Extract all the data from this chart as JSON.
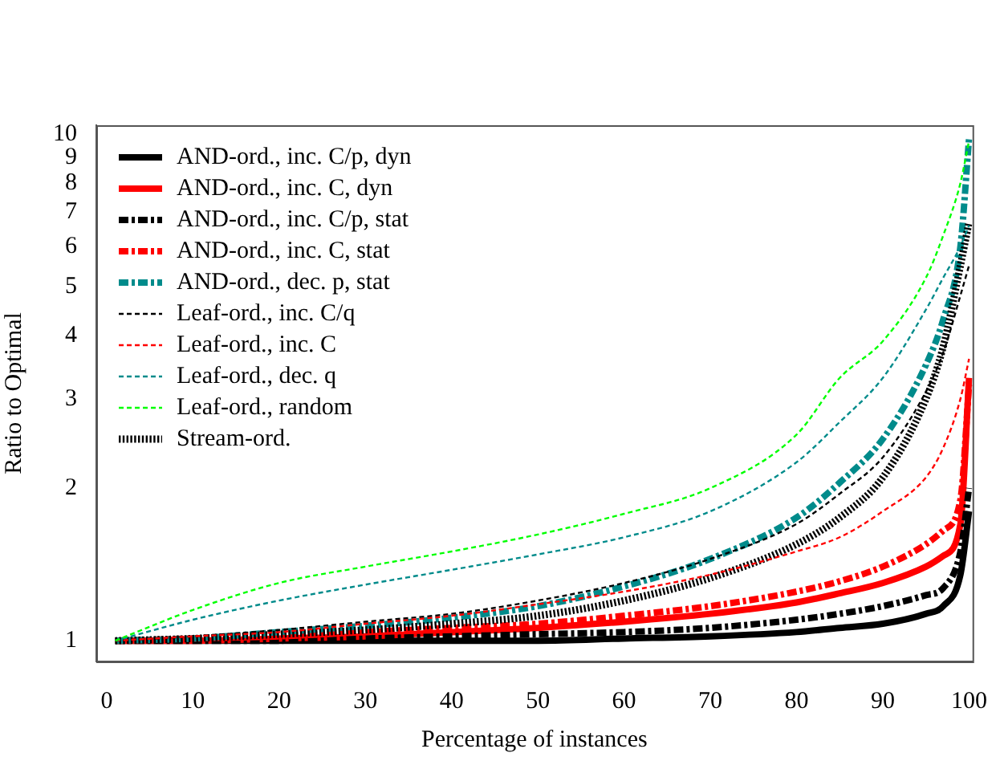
{
  "chart_data": {
    "type": "line",
    "xlabel": "Percentage of instances",
    "ylabel": "Ratio to Optimal",
    "x": [
      1,
      10,
      20,
      30,
      40,
      50,
      60,
      70,
      80,
      85,
      90,
      95,
      97,
      99,
      100
    ],
    "series": [
      {
        "name": "AND-ord., inc. C/p, dyn",
        "color": "#000000",
        "line_style": "solid",
        "values": [
          1,
          1,
          1,
          1,
          1,
          1.0,
          1.01,
          1.02,
          1.04,
          1.06,
          1.08,
          1.13,
          1.17,
          1.35,
          1.8
        ]
      },
      {
        "name": "AND-ord., inc. C, dyn",
        "color": "#ff0000",
        "line_style": "solid",
        "values": [
          1,
          1.0,
          1.01,
          1.02,
          1.04,
          1.06,
          1.09,
          1.13,
          1.19,
          1.24,
          1.3,
          1.4,
          1.47,
          1.7,
          3.3
        ]
      },
      {
        "name": "AND-ord., inc. C/p, stat",
        "color": "#000000",
        "line_style": "dashdot",
        "values": [
          1,
          1,
          1,
          1.01,
          1.02,
          1.03,
          1.04,
          1.06,
          1.1,
          1.13,
          1.17,
          1.23,
          1.27,
          1.5,
          2.0
        ]
      },
      {
        "name": "AND-ord., inc. C, stat",
        "color": "#ff0000",
        "line_style": "dashdot",
        "values": [
          1,
          1.01,
          1.02,
          1.04,
          1.06,
          1.08,
          1.12,
          1.17,
          1.25,
          1.31,
          1.4,
          1.55,
          1.65,
          1.9,
          3.2
        ]
      },
      {
        "name": "AND-ord., dec. p, stat",
        "color": "#008b8b",
        "line_style": "dashdot",
        "values": [
          1,
          1.01,
          1.04,
          1.07,
          1.11,
          1.17,
          1.28,
          1.45,
          1.75,
          2.05,
          2.5,
          3.5,
          4.3,
          6.0,
          9.8
        ]
      },
      {
        "name": "Leaf-ord., inc. C/q",
        "color": "#000000",
        "line_style": "dashed",
        "values": [
          1,
          1.02,
          1.05,
          1.09,
          1.13,
          1.2,
          1.3,
          1.45,
          1.7,
          1.95,
          2.3,
          3.1,
          3.7,
          4.8,
          5.5
        ]
      },
      {
        "name": "Leaf-ord., inc. C",
        "color": "#ff0000",
        "line_style": "dashed",
        "values": [
          1,
          1.02,
          1.04,
          1.08,
          1.12,
          1.18,
          1.25,
          1.35,
          1.5,
          1.6,
          1.8,
          2.1,
          2.4,
          3.0,
          3.6
        ]
      },
      {
        "name": "Leaf-ord., dec. q",
        "color": "#008b8b",
        "line_style": "dashed",
        "values": [
          1,
          1.1,
          1.2,
          1.29,
          1.38,
          1.48,
          1.6,
          1.8,
          2.25,
          2.7,
          3.3,
          4.5,
          5.2,
          6.0,
          6.6
        ]
      },
      {
        "name": "Leaf-ord., random",
        "color": "#00ff00",
        "line_style": "dashed",
        "values": [
          1,
          1.15,
          1.3,
          1.4,
          1.5,
          1.62,
          1.78,
          2.0,
          2.55,
          3.3,
          3.9,
          5.2,
          6.3,
          8.0,
          9.7
        ]
      },
      {
        "name": "Stream-ord.",
        "color": "#000000",
        "line_style": "dotted",
        "values": [
          1,
          1.01,
          1.03,
          1.05,
          1.08,
          1.12,
          1.2,
          1.33,
          1.55,
          1.75,
          2.1,
          3.0,
          3.8,
          5.5,
          6.7
        ]
      }
    ],
    "log": "y",
    "xlim": [
      -1.2,
      100.4
    ],
    "xticks": [
      0,
      10,
      20,
      30,
      40,
      50,
      60,
      70,
      80,
      90,
      100
    ],
    "ylim": [
      0.91,
      10.4
    ],
    "yticks": [
      1,
      2,
      3,
      4,
      5,
      6,
      7,
      8,
      9,
      10
    ],
    "legend": "top left"
  }
}
